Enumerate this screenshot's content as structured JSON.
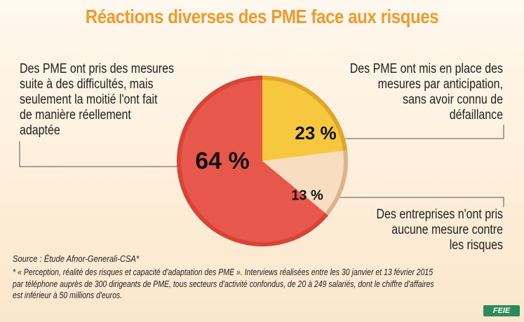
{
  "title": "Réactions diverses des PME face aux risques",
  "chart_data": {
    "type": "pie",
    "slices": [
      {
        "label": "Des PME ont pris des mesures suite à des difficultés, mais seulement la moitié l'ont fait de manière réellement adaptée",
        "value": 64,
        "value_label": "64 %",
        "color": "#e8574b"
      },
      {
        "label": "Des PME ont mis en place des mesures par anticipation, sans avoir connu de défaillance",
        "value": 23,
        "value_label": "23 %",
        "color": "#f7c83e"
      },
      {
        "label": "Des entreprises n'ont pris aucune mesure contre les risques",
        "value": 13,
        "value_label": "13 %",
        "color": "#f8ddc0"
      }
    ]
  },
  "labels": {
    "left": [
      "Des PME ont pris des mesures",
      "suite à des difficultés, mais",
      "seulement la moitié l'ont fait",
      "de manière réellement",
      "adaptée"
    ],
    "right_top": [
      "Des PME ont mis en place des",
      "mesures par anticipation,",
      "sans avoir connu de",
      "défaillance"
    ],
    "right_bottom": [
      "Des entreprises n'ont pris",
      "aucune mesure contre",
      "les risques"
    ]
  },
  "source": "Source : Étude Afnor-Generali-CSA*",
  "note": [
    "* « Perception, réalité des risques et capacité d'adaptation des PME ». Interviews réalisées entre les 30 janvier et 13 février 2015",
    "par téléphone auprès de 300 dirigeants de PME, tous secteurs d'activité confondus, de 20 à 249 salariés, dont le chiffre d'affaires",
    "est inférieur à 50 millions d'euros."
  ],
  "logo": "FEIE"
}
